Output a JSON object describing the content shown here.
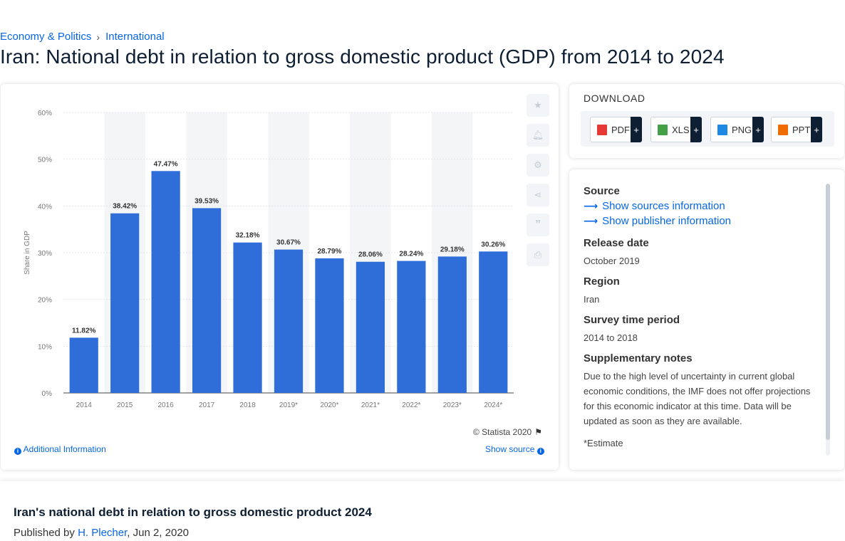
{
  "breadcrumb": {
    "items": [
      "Economy & Politics",
      "International"
    ]
  },
  "page": {
    "title": "Iran: National debt in relation to gross domestic product (GDP) from 2014 to 2024"
  },
  "toolbar": {
    "icons": [
      "star-icon",
      "bell-icon",
      "gear-icon",
      "share-icon",
      "quote-icon",
      "print-icon"
    ]
  },
  "chart_footer": {
    "credit": "© Statista 2020",
    "additional_info": "Additional Information",
    "show_source": "Show source"
  },
  "download": {
    "title": "DOWNLOAD",
    "buttons": [
      {
        "label": "PDF",
        "color": "#e53935"
      },
      {
        "label": "XLS",
        "color": "#43a047"
      },
      {
        "label": "PNG",
        "color": "#1e88e5"
      },
      {
        "label": "PPT",
        "color": "#ef6c00"
      }
    ],
    "plus": "+"
  },
  "source_panel": {
    "source_heading": "Source",
    "show_sources": "Show sources information",
    "show_publisher": "Show publisher information",
    "release_heading": "Release date",
    "release_value": "October 2019",
    "region_heading": "Region",
    "region_value": "Iran",
    "period_heading": "Survey time period",
    "period_value": "2014 to 2018",
    "notes_heading": "Supplementary notes",
    "notes_value": "Due to the high level of uncertainty in current global economic conditions, the IMF does not offer projections for this economic indicator at this time. Data will be updated as soon as they are available.",
    "notes_extra": "*Estimate"
  },
  "article": {
    "title": "Iran's national debt in relation to gross domestic product 2024",
    "published_prefix": "Published by",
    "author": "H. Plecher",
    "date": ", Jun 2, 2020"
  },
  "chart_data": {
    "type": "bar",
    "categories": [
      "2014",
      "2015",
      "2016",
      "2017",
      "2018",
      "2019*",
      "2020*",
      "2021*",
      "2022*",
      "2023*",
      "2024*"
    ],
    "values": [
      11.82,
      38.42,
      47.47,
      39.53,
      32.18,
      30.67,
      28.79,
      28.06,
      28.24,
      29.18,
      30.26
    ],
    "data_labels": [
      "11.82%",
      "38.42%",
      "47.47%",
      "39.53%",
      "32.18%",
      "30.67%",
      "28.79%",
      "28.06%",
      "28.24%",
      "29.18%",
      "30.26%"
    ],
    "ylabel": "Share in GDP",
    "ylim": [
      0,
      60
    ],
    "yticks": [
      "0%",
      "10%",
      "20%",
      "30%",
      "40%",
      "50%",
      "60%"
    ],
    "grid": true,
    "bar_color": "#2f6ed8"
  }
}
